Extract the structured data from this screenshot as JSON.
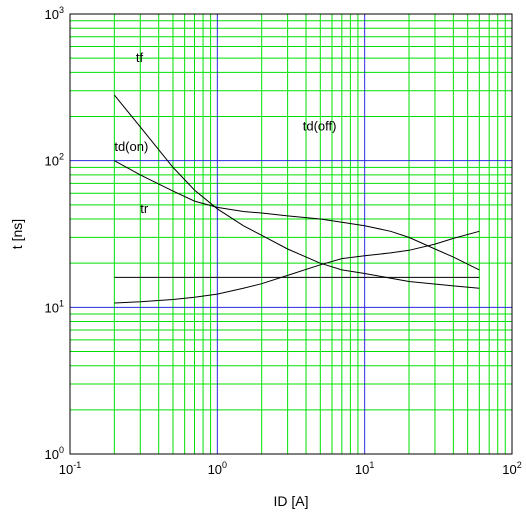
{
  "chart_data": {
    "type": "line",
    "title": "",
    "xlabel": "ID [A]",
    "ylabel": "t [ns]",
    "x_scale": "log",
    "y_scale": "log",
    "xlim": [
      0.1,
      100
    ],
    "ylim": [
      1,
      1000
    ],
    "grid": true,
    "colors": {
      "minor_grid": "#00e000",
      "major_grid": "#2a2ae6",
      "series": "#000000"
    },
    "x_ticks": [
      {
        "base": "10",
        "exp": "-1"
      },
      {
        "base": "10",
        "exp": "0"
      },
      {
        "base": "10",
        "exp": "1"
      },
      {
        "base": "10",
        "exp": "2"
      }
    ],
    "y_ticks": [
      {
        "base": "10",
        "exp": "0"
      },
      {
        "base": "10",
        "exp": "1"
      },
      {
        "base": "10",
        "exp": "2"
      },
      {
        "base": "10",
        "exp": "3"
      }
    ],
    "series": [
      {
        "name": "tf",
        "label_at": [
          0.28,
          470
        ],
        "x": [
          0.2,
          0.3,
          0.5,
          0.7,
          1,
          1.5,
          2,
          3,
          5,
          7,
          10,
          20,
          40,
          60
        ],
        "y": [
          280,
          170,
          90,
          63,
          47,
          36,
          31,
          25,
          20,
          18,
          17,
          15,
          14,
          13.5
        ]
      },
      {
        "name": "td(off)",
        "label_at": [
          3.8,
          160
        ],
        "x": [
          0.2,
          0.3,
          0.5,
          0.7,
          1,
          1.5,
          2,
          3,
          5,
          7,
          10,
          15,
          20,
          30,
          40,
          60
        ],
        "y": [
          100,
          80,
          62,
          53,
          48,
          45,
          44,
          42,
          40,
          38,
          36,
          33,
          30,
          25,
          22,
          18
        ]
      },
      {
        "name": "td(on)",
        "label_at": [
          0.2,
          116
        ],
        "x": [
          0.2,
          60
        ],
        "y": [
          16,
          16
        ]
      },
      {
        "name": "tr",
        "label_at": [
          0.3,
          44
        ],
        "x": [
          0.2,
          0.3,
          0.5,
          0.7,
          1,
          1.5,
          2,
          3,
          5,
          7,
          10,
          15,
          20,
          30,
          40,
          60
        ],
        "y": [
          10.7,
          10.9,
          11.3,
          11.7,
          12.3,
          13.5,
          14.5,
          16.5,
          19.5,
          21.5,
          22.5,
          23.5,
          24.5,
          27,
          29.5,
          33
        ]
      }
    ]
  }
}
